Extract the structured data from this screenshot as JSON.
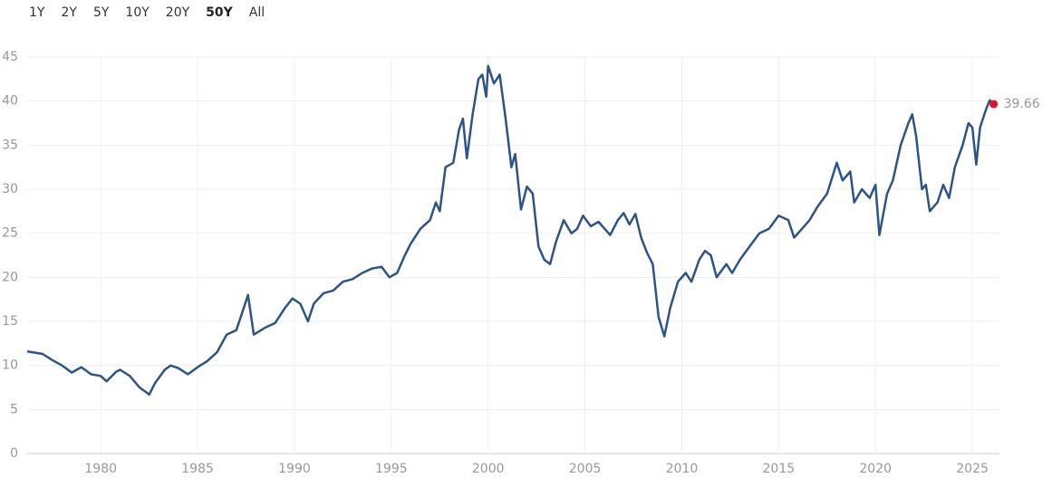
{
  "range_buttons": [
    {
      "label": "1Y"
    },
    {
      "label": "2Y"
    },
    {
      "label": "5Y"
    },
    {
      "label": "10Y"
    },
    {
      "label": "20Y"
    },
    {
      "label": "50Y",
      "active": true
    },
    {
      "label": "All"
    }
  ],
  "chart_data": {
    "type": "line",
    "color": "#2d5486",
    "end_color": "#e0102f",
    "grid": true,
    "xlim": [
      1976.2,
      2026.4
    ],
    "ylim": [
      0,
      45
    ],
    "xticks": [
      1980,
      1985,
      1990,
      1995,
      2000,
      2005,
      2010,
      2015,
      2020,
      2025
    ],
    "yticks": [
      0,
      5,
      10,
      15,
      20,
      25,
      30,
      35,
      40,
      45
    ],
    "x": [
      1976.2,
      1977,
      1977.5,
      1978,
      1978.5,
      1979,
      1979.5,
      1980,
      1980.3,
      1980.8,
      1981,
      1981.5,
      1982,
      1982.5,
      1982.8,
      1983.3,
      1983.6,
      1984,
      1984.5,
      1985,
      1985.5,
      1986,
      1986.5,
      1987,
      1987.3,
      1987.6,
      1987.9,
      1988.5,
      1989,
      1989.5,
      1989.9,
      1990.3,
      1990.7,
      1991,
      1991.5,
      1992,
      1992.5,
      1993,
      1993.5,
      1994,
      1994.5,
      1994.9,
      1995.3,
      1995.7,
      1996,
      1996.5,
      1997,
      1997.3,
      1997.5,
      1997.8,
      1998.2,
      1998.5,
      1998.7,
      1998.9,
      1999.2,
      1999.5,
      1999.7,
      1999.9,
      2000,
      2000.3,
      2000.6,
      2000.9,
      2001.2,
      2001.4,
      2001.7,
      2002,
      2002.3,
      2002.6,
      2002.9,
      2003.2,
      2003.5,
      2003.9,
      2004.3,
      2004.6,
      2004.9,
      2005.3,
      2005.7,
      2006.3,
      2006.7,
      2007,
      2007.3,
      2007.6,
      2007.9,
      2008.2,
      2008.5,
      2008.8,
      2009.1,
      2009.4,
      2009.8,
      2010.2,
      2010.5,
      2010.9,
      2011.2,
      2011.5,
      2011.8,
      2012.3,
      2012.6,
      2013,
      2013.5,
      2014,
      2014.5,
      2015,
      2015.5,
      2015.8,
      2016.2,
      2016.6,
      2017,
      2017.5,
      2018,
      2018.3,
      2018.7,
      2018.9,
      2019.3,
      2019.7,
      2020,
      2020.2,
      2020.6,
      2020.9,
      2021.3,
      2021.7,
      2021.9,
      2022.1,
      2022.4,
      2022.6,
      2022.8,
      2023.2,
      2023.5,
      2023.8,
      2024.1,
      2024.5,
      2024.8,
      2025,
      2025.2,
      2025.4,
      2025.7,
      2025.9,
      2026.1
    ],
    "values": [
      11.6,
      11.3,
      10.6,
      10.0,
      9.2,
      9.8,
      9.0,
      8.8,
      8.2,
      9.3,
      9.5,
      8.8,
      7.5,
      6.7,
      8.0,
      9.5,
      10.0,
      9.7,
      9.0,
      9.8,
      10.5,
      11.5,
      13.5,
      14.0,
      16.0,
      18.0,
      13.5,
      14.3,
      14.8,
      16.5,
      17.6,
      17.0,
      15.0,
      17.0,
      18.2,
      18.5,
      19.5,
      19.8,
      20.5,
      21.0,
      21.2,
      20.0,
      20.5,
      22.5,
      23.8,
      25.5,
      26.5,
      28.5,
      27.5,
      32.5,
      33,
      36.8,
      38.0,
      33.5,
      38.5,
      42.5,
      43,
      40.5,
      44,
      42,
      43,
      38,
      32.5,
      34,
      27.7,
      30.3,
      29.5,
      23.5,
      22.0,
      21.5,
      24.0,
      26.5,
      25.0,
      25.5,
      27.0,
      25.8,
      26.3,
      24.8,
      26.5,
      27.3,
      26.0,
      27.2,
      24.5,
      22.8,
      21.5,
      15.5,
      13.3,
      16.5,
      19.5,
      20.5,
      19.5,
      22.0,
      23.0,
      22.5,
      20.0,
      21.5,
      20.5,
      22.0,
      23.5,
      25.0,
      25.5,
      27.0,
      26.5,
      24.5,
      25.5,
      26.5,
      28.0,
      29.5,
      33.0,
      31.0,
      32.0,
      28.5,
      30.0,
      29.0,
      30.5,
      24.8,
      29.5,
      31.0,
      35.0,
      37.5,
      38.5,
      36.0,
      30.0,
      30.5,
      27.5,
      28.5,
      30.5,
      29.0,
      32.5,
      35.0,
      37.5,
      37.0,
      32.8,
      37.0,
      39.0,
      40.1,
      39.66
    ]
  }
}
